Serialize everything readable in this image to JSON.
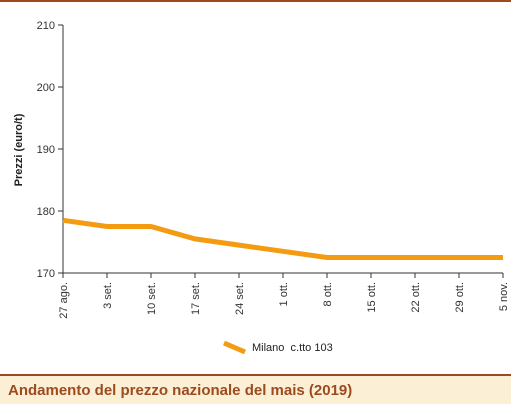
{
  "chart_data": {
    "type": "line",
    "title": "Andamento del prezzo nazionale del mais (2019)",
    "ylabel": "Prezzi (euro/t)",
    "xlabel": "",
    "ylim": [
      170,
      210
    ],
    "yticks": [
      170,
      180,
      190,
      200,
      210
    ],
    "categories": [
      "27 ago.",
      "3 set.",
      "10 set.",
      "17 set.",
      "24 set.",
      "1 ott.",
      "8 ott.",
      "15 ott.",
      "22 ott.",
      "29 ott.",
      "5 nov."
    ],
    "series": [
      {
        "name": "Milano  c.tto 103",
        "color": "#f39c12",
        "values": [
          178.5,
          177.5,
          177.5,
          175.5,
          174.5,
          173.5,
          172.5,
          172.5,
          172.5,
          172.5,
          172.5
        ]
      }
    ],
    "grid": false,
    "legend": "bottom-center"
  }
}
